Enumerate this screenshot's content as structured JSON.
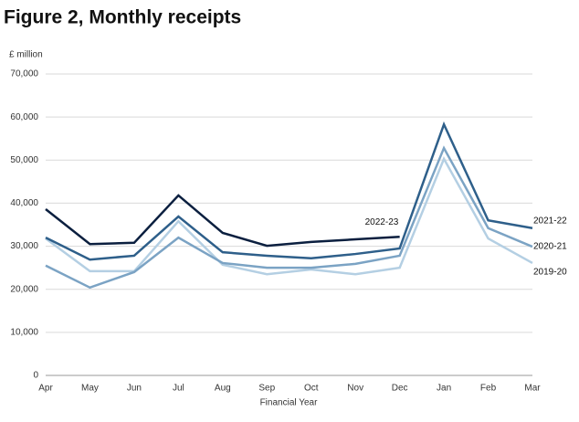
{
  "chart_data": {
    "type": "line",
    "title": "Figure 2, Monthly receipts",
    "y_label": "£ million",
    "x_label": "Financial Year",
    "categories": [
      "Apr",
      "May",
      "Jun",
      "Jul",
      "Aug",
      "Sep",
      "Oct",
      "Nov",
      "Dec",
      "Jan",
      "Feb",
      "Mar"
    ],
    "series": [
      {
        "name": "2019-20",
        "color": "#b4cfe3",
        "values": [
          31800,
          24200,
          24200,
          35800,
          25700,
          23500,
          24600,
          23500,
          25000,
          50300,
          31800,
          26100
        ]
      },
      {
        "name": "2020-21",
        "color": "#7ba3c4",
        "values": [
          25500,
          20400,
          24000,
          32000,
          26100,
          25000,
          25000,
          25900,
          27800,
          52800,
          34200,
          29900
        ]
      },
      {
        "name": "2021-22",
        "color": "#2e5f8a",
        "values": [
          32000,
          26900,
          27800,
          36900,
          28600,
          27800,
          27200,
          28200,
          29500,
          58300,
          36000,
          34200
        ]
      },
      {
        "name": "2022-23",
        "color": "#0b1f3f",
        "values": [
          38600,
          30500,
          30800,
          41800,
          33100,
          30100,
          31000,
          31600,
          32200,
          null,
          null,
          null
        ]
      }
    ],
    "ylim": [
      0,
      70000
    ],
    "yticks": [
      0,
      {
        "value": 10000,
        "label": "10,000"
      },
      {
        "value": 20000,
        "label": "20,000"
      },
      {
        "value": 30000,
        "label": "30,000"
      },
      {
        "value": 40000,
        "label": "40,000"
      },
      {
        "value": 50000,
        "label": "50,000"
      },
      {
        "value": 60000,
        "label": "60,000"
      },
      {
        "value": 70000,
        "label": "70,000"
      }
    ],
    "grid": true
  }
}
